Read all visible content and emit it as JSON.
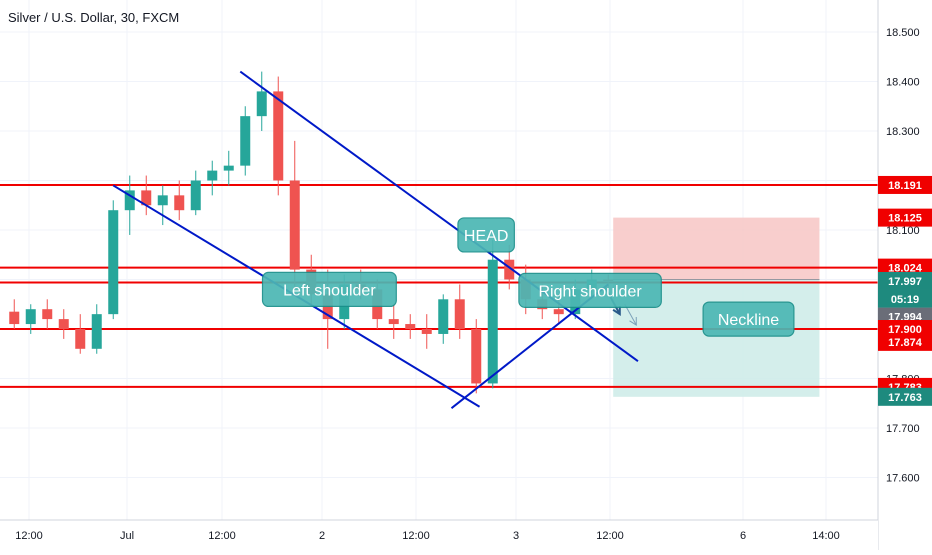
{
  "header": {
    "symbol": "Silver / U.S. Dollar, 30, FXCM"
  },
  "colors": {
    "up": "#26a69a",
    "down": "#ef5350",
    "resistance": "#f00000",
    "trend": "#0019c8",
    "stop_zone": "#f7c5c4",
    "target_zone": "#cdebe8",
    "label_fill": "#4cb7b4",
    "label_stroke": "#1a8f8a",
    "grid": "#f0f3fa"
  },
  "chart_data": {
    "type": "candlestick",
    "title": "Silver / U.S. Dollar, 30, FXCM",
    "ylim": [
      17.55,
      18.55
    ],
    "y_ticks": [
      "17.600",
      "17.700",
      "17.800",
      "17.900",
      "18.000",
      "18.100",
      "18.200",
      "18.300",
      "18.400",
      "18.500"
    ],
    "x_ticks": [
      "12:00",
      "Jul",
      "12:00",
      "2",
      "12:00",
      "3",
      "12:00",
      "6",
      "14:00"
    ],
    "grid": true,
    "horizontal_lines": [
      18.191,
      18.024,
      17.994,
      17.9,
      17.783
    ],
    "price_badges": [
      {
        "label": "18.191",
        "value": 18.191,
        "kind": "red"
      },
      {
        "label": "18.125",
        "value": 18.125,
        "kind": "red"
      },
      {
        "label": "18.024",
        "value": 18.024,
        "kind": "red"
      },
      {
        "label": "17.997",
        "value": 17.997,
        "kind": "green"
      },
      {
        "label": "05:19",
        "value": 17.961,
        "kind": "green"
      },
      {
        "label": "17.994",
        "value": 17.925,
        "kind": "gray"
      },
      {
        "label": "17.900",
        "value": 17.9,
        "kind": "red"
      },
      {
        "label": "17.874",
        "value": 17.874,
        "kind": "red"
      },
      {
        "label": "17.783",
        "value": 17.783,
        "kind": "red"
      },
      {
        "label": "17.763",
        "value": 17.763,
        "kind": "green"
      }
    ],
    "annotations": [
      {
        "text": "Left shoulder",
        "x": 19.6,
        "y": 17.98
      },
      {
        "text": "HEAD",
        "x": 29.1,
        "y": 18.09
      },
      {
        "text": "Right shoulder",
        "x": 35.4,
        "y": 17.978
      },
      {
        "text": "Neckline",
        "x": 45.0,
        "y": 17.92
      }
    ],
    "trend_lines": [
      {
        "x1": 14.2,
        "y1": 18.42,
        "x2": 38.3,
        "y2": 17.835
      },
      {
        "x1": 6.5,
        "y1": 18.19,
        "x2": 28.7,
        "y2": 17.743
      },
      {
        "x1": 27.0,
        "y1": 17.74,
        "x2": 36.5,
        "y2": 17.99
      }
    ],
    "arrows": [
      {
        "x1": 36.3,
        "y1": 17.985,
        "x2": 37.2,
        "y2": 17.93
      },
      {
        "x1": 37.5,
        "y1": 17.95,
        "x2": 38.2,
        "y2": 17.908
      }
    ],
    "position_zones": [
      {
        "kind": "stop",
        "x1": 36.8,
        "x2": 49.3,
        "y1": 18.0,
        "y2": 18.125
      },
      {
        "kind": "target",
        "x1": 36.8,
        "x2": 49.3,
        "y1": 17.763,
        "y2": 18.0
      }
    ],
    "candles": [
      [
        17.935,
        17.96,
        17.9,
        17.91
      ],
      [
        17.91,
        17.95,
        17.89,
        17.94
      ],
      [
        17.94,
        17.96,
        17.9,
        17.92
      ],
      [
        17.92,
        17.94,
        17.88,
        17.9
      ],
      [
        17.9,
        17.93,
        17.85,
        17.86
      ],
      [
        17.86,
        17.95,
        17.85,
        17.93
      ],
      [
        17.93,
        18.16,
        17.92,
        18.14
      ],
      [
        18.14,
        18.21,
        18.09,
        18.18
      ],
      [
        18.18,
        18.21,
        18.13,
        18.15
      ],
      [
        18.15,
        18.19,
        18.11,
        18.17
      ],
      [
        18.17,
        18.2,
        18.12,
        18.14
      ],
      [
        18.14,
        18.22,
        18.13,
        18.2
      ],
      [
        18.2,
        18.24,
        18.17,
        18.22
      ],
      [
        18.22,
        18.26,
        18.19,
        18.23
      ],
      [
        18.23,
        18.35,
        18.21,
        18.33
      ],
      [
        18.33,
        18.42,
        18.3,
        18.38
      ],
      [
        18.38,
        18.41,
        18.17,
        18.2
      ],
      [
        18.2,
        18.28,
        17.98,
        18.02
      ],
      [
        18.02,
        18.05,
        17.95,
        17.97
      ],
      [
        17.97,
        18.02,
        17.86,
        17.92
      ],
      [
        17.92,
        18.01,
        17.9,
        17.99
      ],
      [
        17.99,
        18.02,
        17.96,
        17.98
      ],
      [
        17.98,
        18.0,
        17.9,
        17.92
      ],
      [
        17.92,
        17.95,
        17.88,
        17.91
      ],
      [
        17.91,
        17.93,
        17.88,
        17.9
      ],
      [
        17.9,
        17.93,
        17.86,
        17.89
      ],
      [
        17.89,
        17.97,
        17.87,
        17.96
      ],
      [
        17.96,
        17.99,
        17.88,
        17.9
      ],
      [
        17.9,
        17.92,
        17.77,
        17.79
      ],
      [
        17.79,
        18.08,
        17.78,
        18.04
      ],
      [
        18.04,
        18.07,
        17.98,
        18.0
      ],
      [
        18.0,
        18.03,
        17.93,
        17.96
      ],
      [
        17.96,
        17.99,
        17.92,
        17.94
      ],
      [
        17.94,
        17.97,
        17.91,
        17.93
      ],
      [
        17.93,
        18.0,
        17.92,
        17.98
      ],
      [
        17.98,
        18.02,
        17.96,
        18.0
      ],
      [
        18.0,
        18.01,
        17.98,
        17.997
      ]
    ]
  }
}
